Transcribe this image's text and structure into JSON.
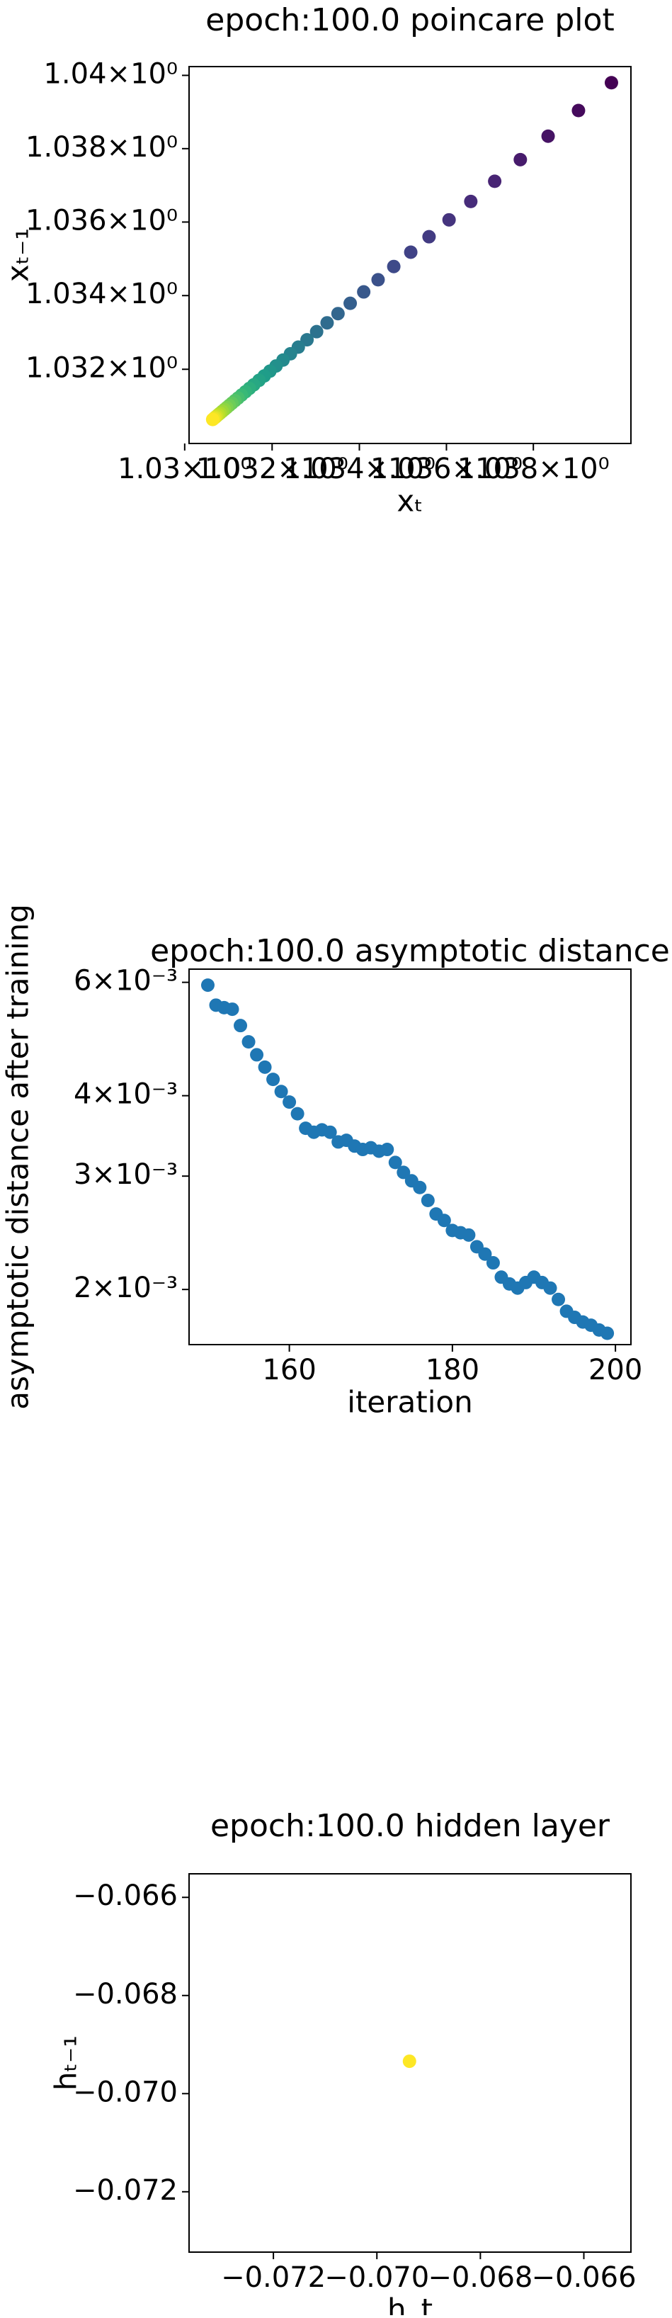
{
  "chart_data": [
    {
      "type": "scatter",
      "title": "epoch:100.0 poincare plot",
      "xlabel": "xₜ",
      "ylabel": "xₜ₋₁",
      "xscale": "log",
      "yscale": "log",
      "xlim": [
        1.0301,
        1.04025
      ],
      "ylim": [
        1.02999,
        1.04024
      ],
      "xticks": [
        {
          "value": 1.03,
          "label": "1.03×10⁰"
        },
        {
          "value": 1.032,
          "label": "1.032×10⁰"
        },
        {
          "value": 1.034,
          "label": "1.034×10⁰"
        },
        {
          "value": 1.036,
          "label": "1.036×10⁰"
        },
        {
          "value": 1.038,
          "label": "1.038×10⁰"
        }
      ],
      "yticks": [
        {
          "value": 1.032,
          "label": "1.032×10⁰"
        },
        {
          "value": 1.034,
          "label": "1.034×10⁰"
        },
        {
          "value": 1.036,
          "label": "1.036×10⁰"
        },
        {
          "value": 1.038,
          "label": "1.038×10⁰"
        },
        {
          "value": 1.04,
          "label": "1.04×10⁰"
        }
      ],
      "series": [
        {
          "colormap": "viridis",
          "x": [
            1.0398,
            1.03904,
            1.03834,
            1.0377,
            1.03711,
            1.03656,
            1.03606,
            1.0356,
            1.03518,
            1.03479,
            1.03443,
            1.0341,
            1.03379,
            1.03351,
            1.03326,
            1.03302,
            1.0328,
            1.0326,
            1.03242,
            1.03225,
            1.03209,
            1.03195,
            1.03182,
            1.0317,
            1.03158,
            1.03148,
            1.03139,
            1.0313,
            1.03122,
            1.03115,
            1.03108,
            1.03102,
            1.03096,
            1.03091,
            1.03086,
            1.03081,
            1.03077,
            1.03073,
            1.0307,
            1.03067,
            1.03064
          ],
          "y": [
            1.0398,
            1.03904,
            1.03834,
            1.0377,
            1.03711,
            1.03656,
            1.03606,
            1.0356,
            1.03518,
            1.03479,
            1.03443,
            1.0341,
            1.03379,
            1.03351,
            1.03326,
            1.03302,
            1.0328,
            1.0326,
            1.03242,
            1.03225,
            1.03209,
            1.03195,
            1.03182,
            1.0317,
            1.03158,
            1.03148,
            1.03139,
            1.0313,
            1.03122,
            1.03115,
            1.03108,
            1.03102,
            1.03096,
            1.03091,
            1.03086,
            1.03081,
            1.03077,
            1.03073,
            1.0307,
            1.03067,
            1.03064
          ]
        }
      ]
    },
    {
      "type": "scatter",
      "title": "epoch:100.0 asymptotic distance",
      "xlabel": "iteration",
      "ylabel": "asymptotic distance after training",
      "yscale": "log",
      "xlim": [
        147.7,
        201.9
      ],
      "ylim": [
        0.001642,
        0.00629
      ],
      "xticks": [
        160,
        180,
        200
      ],
      "yticks": [
        {
          "value": 0.002,
          "label": "2×10⁻³"
        },
        {
          "value": 0.003,
          "label": "3×10⁻³"
        },
        {
          "value": 0.004,
          "label": "4×10⁻³"
        },
        {
          "value": 0.006,
          "label": "6×10⁻³"
        }
      ],
      "series": [
        {
          "color": "#1f77b4",
          "x": [
            150,
            151,
            152,
            153,
            154,
            155,
            156,
            157,
            158,
            159,
            160,
            161,
            162,
            163,
            164,
            165,
            166,
            167,
            168,
            169,
            170,
            171,
            172,
            173,
            174,
            175,
            176,
            177,
            178,
            179,
            180,
            181,
            182,
            183,
            184,
            185,
            186,
            187,
            188,
            189,
            190,
            191,
            192,
            193,
            194,
            195,
            196,
            197,
            198,
            199
          ],
          "y": [
            0.00594,
            0.00553,
            0.00548,
            0.00545,
            0.00514,
            0.00485,
            0.00463,
            0.00443,
            0.00424,
            0.00406,
            0.00391,
            0.00375,
            0.00356,
            0.00351,
            0.00354,
            0.00351,
            0.00339,
            0.00341,
            0.00334,
            0.0033,
            0.00332,
            0.00328,
            0.0033,
            0.00315,
            0.00304,
            0.00295,
            0.00288,
            0.00275,
            0.00262,
            0.00256,
            0.00247,
            0.00245,
            0.00243,
            0.00233,
            0.00227,
            0.0022,
            0.00209,
            0.00204,
            0.00201,
            0.00205,
            0.00209,
            0.00205,
            0.00201,
            0.00193,
            0.00185,
            0.00181,
            0.00178,
            0.00176,
            0.00173,
            0.00171
          ]
        }
      ]
    },
    {
      "type": "scatter",
      "title": "epoch:100.0 hidden layer",
      "xlabel": "h_t",
      "ylabel": "hₜ₋₁",
      "xlim": [
        -0.07363,
        -0.06509
      ],
      "ylim": [
        -0.07323,
        -0.06552
      ],
      "xticks": [
        {
          "value": -0.072,
          "label": "−0.072"
        },
        {
          "value": -0.07,
          "label": "−0.070"
        },
        {
          "value": -0.068,
          "label": "−0.068"
        },
        {
          "value": -0.066,
          "label": "−0.066"
        }
      ],
      "yticks": [
        {
          "value": -0.072,
          "label": "−0.072"
        },
        {
          "value": -0.07,
          "label": "−0.070"
        },
        {
          "value": -0.068,
          "label": "−0.068"
        },
        {
          "value": -0.066,
          "label": "−0.066"
        }
      ],
      "series": [
        {
          "color": "#fde725",
          "x": [
            -0.06937
          ],
          "y": [
            -0.06934
          ]
        }
      ]
    }
  ]
}
